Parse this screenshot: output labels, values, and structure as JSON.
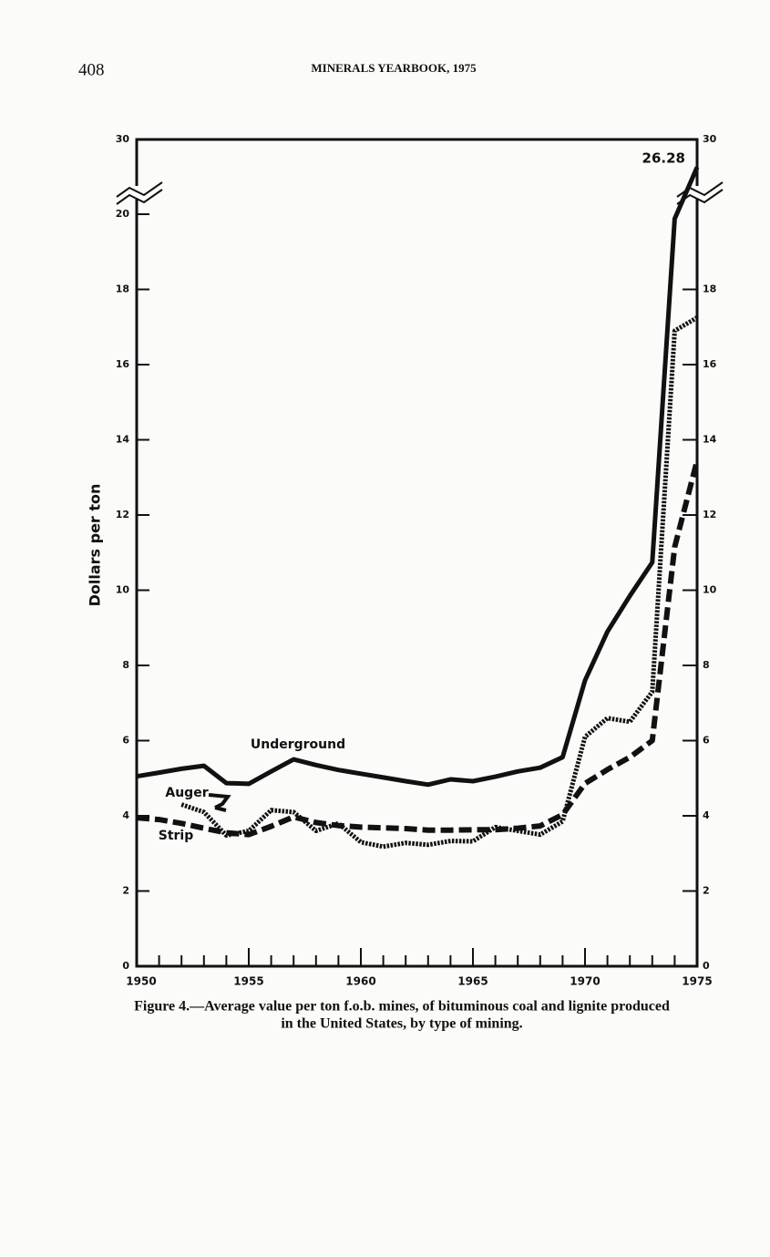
{
  "header": {
    "page_number": "408",
    "running_title": "MINERALS YEARBOOK, 1975"
  },
  "chart_data": {
    "type": "line",
    "y_label": "Dollars per ton",
    "annotation": "26.28",
    "caption": [
      "Figure 4.—Average value per ton f.o.b. mines, of bituminous coal and lignite produced",
      "in the United States, by type of mining."
    ],
    "x": [
      1950,
      1951,
      1952,
      1953,
      1954,
      1955,
      1956,
      1957,
      1958,
      1959,
      1960,
      1961,
      1962,
      1963,
      1964,
      1965,
      1966,
      1967,
      1968,
      1969,
      1970,
      1971,
      1972,
      1973,
      1974,
      1975
    ],
    "xlim": [
      1950,
      1975
    ],
    "xticks": [
      1950,
      1955,
      1960,
      1965,
      1970,
      1975
    ],
    "ylim": [
      0,
      30
    ],
    "y_break_at": 20,
    "yticks": [
      0,
      2,
      4,
      6,
      8,
      10,
      12,
      14,
      16,
      18,
      20,
      30
    ],
    "y2lim": [
      0,
      30
    ],
    "y2ticks": [
      0,
      2,
      4,
      6,
      8,
      10,
      12,
      14,
      16,
      18,
      30
    ],
    "series": [
      {
        "name": "Underground",
        "color": "#111111",
        "style": "solid",
        "values": [
          5.05,
          5.15,
          5.25,
          5.33,
          4.87,
          4.85,
          5.18,
          5.5,
          5.35,
          5.22,
          5.12,
          5.02,
          4.92,
          4.83,
          4.97,
          4.92,
          5.04,
          5.18,
          5.28,
          5.56,
          7.6,
          8.9,
          9.85,
          10.74,
          19.88,
          26.28
        ]
      },
      {
        "name": "Auger",
        "color": "#111111",
        "style": "dotted",
        "values": [
          null,
          null,
          4.3,
          4.1,
          3.48,
          3.6,
          4.15,
          4.1,
          3.6,
          3.8,
          3.3,
          3.18,
          3.28,
          3.23,
          3.33,
          3.32,
          3.7,
          3.6,
          3.5,
          3.85,
          6.1,
          6.6,
          6.5,
          7.3,
          16.9,
          17.25
        ]
      },
      {
        "name": "Strip",
        "color": "#111111",
        "style": "dashed",
        "values": [
          3.95,
          3.9,
          3.8,
          3.67,
          3.55,
          3.5,
          3.72,
          3.97,
          3.82,
          3.74,
          3.7,
          3.68,
          3.66,
          3.62,
          3.62,
          3.63,
          3.63,
          3.67,
          3.73,
          4.03,
          4.86,
          5.23,
          5.56,
          6.0,
          11.15,
          13.45
        ]
      }
    ]
  }
}
